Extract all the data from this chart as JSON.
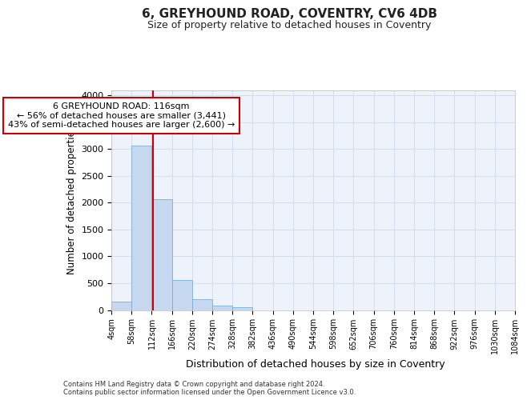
{
  "title1": "6, GREYHOUND ROAD, COVENTRY, CV6 4DB",
  "title2": "Size of property relative to detached houses in Coventry",
  "xlabel": "Distribution of detached houses by size in Coventry",
  "ylabel": "Number of detached properties",
  "footer1": "Contains HM Land Registry data © Crown copyright and database right 2024.",
  "footer2": "Contains public sector information licensed under the Open Government Licence v3.0.",
  "annotation_line1": "6 GREYHOUND ROAD: 116sqm",
  "annotation_line2": "← 56% of detached houses are smaller (3,441)",
  "annotation_line3": "43% of semi-detached houses are larger (2,600) →",
  "bar_color": "#c5d8f0",
  "bar_edge_color": "#7aafd4",
  "vline_color": "#cc0000",
  "vline_x": 116,
  "bin_edges": [
    4,
    58,
    112,
    166,
    220,
    274,
    328,
    382,
    436,
    490,
    544,
    598,
    652,
    706,
    760,
    814,
    868,
    922,
    976,
    1030,
    1084
  ],
  "bin_labels": [
    "4sqm",
    "58sqm",
    "112sqm",
    "166sqm",
    "220sqm",
    "274sqm",
    "328sqm",
    "382sqm",
    "436sqm",
    "490sqm",
    "544sqm",
    "598sqm",
    "652sqm",
    "706sqm",
    "760sqm",
    "814sqm",
    "868sqm",
    "922sqm",
    "976sqm",
    "1030sqm",
    "1084sqm"
  ],
  "bar_heights": [
    150,
    3060,
    2070,
    565,
    205,
    75,
    50,
    0,
    0,
    0,
    0,
    0,
    0,
    0,
    0,
    0,
    0,
    0,
    0,
    0
  ],
  "ylim": [
    0,
    4100
  ],
  "yticks": [
    0,
    500,
    1000,
    1500,
    2000,
    2500,
    3000,
    3500,
    4000
  ],
  "grid_color": "#d5dded",
  "background_color": "#edf2fb",
  "box_edge_color": "#cc0000"
}
